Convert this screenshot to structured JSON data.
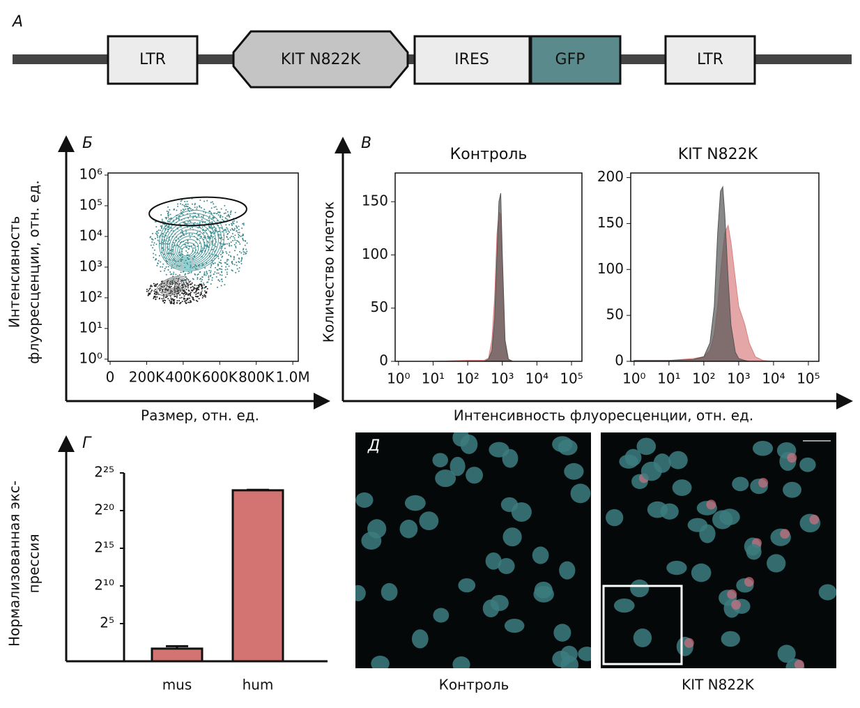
{
  "panel_labels": [
    "А",
    "Б",
    "В",
    "Г",
    "Д"
  ],
  "construct": {
    "elements": [
      "LTR",
      "KIT N822K",
      "IRES",
      "GFP",
      "LTR"
    ]
  },
  "histogram_axes": {
    "x_label": "Интенсивность флуоресценции, отн. ед.",
    "y_label": "Количество клеток"
  },
  "images": {
    "captions": [
      "Контроль",
      "KIT N822K"
    ]
  },
  "chart_data": [
    {
      "type": "contour",
      "x_label": "Размер, отн. ед.",
      "y_label": [
        "Интенсивность",
        "флуоресценции, отн. ед."
      ],
      "xlim": [
        -11500,
        1030000
      ],
      "ylim": [
        0.85,
        1170000
      ],
      "log_y": true,
      "xticks": [
        0,
        {
          "value": 200000,
          "label": "200K"
        },
        {
          "value": 400000,
          "label": "400K"
        },
        {
          "value": 600000,
          "label": "600K"
        },
        {
          "value": 800000,
          "label": "800K"
        },
        {
          "value": 1000000,
          "label": "1.0M"
        }
      ],
      "yticks": [
        {
          "value": 1,
          "label": "10⁰"
        },
        {
          "value": 10,
          "label": "10¹"
        },
        {
          "value": 100,
          "label": "10²"
        },
        {
          "value": 1000,
          "label": "10³"
        },
        {
          "value": 10000,
          "label": "10⁴"
        },
        {
          "value": 100000,
          "label": "10⁵"
        },
        {
          "value": 1000000,
          "label": "10⁶"
        }
      ]
    },
    {
      "type": "area",
      "title": "Контроль",
      "log_x": true,
      "xlim": [
        0.8,
        200000
      ],
      "ylim": [
        0,
        177
      ],
      "yticks": [
        0,
        50,
        100,
        150
      ],
      "xticks": [
        {
          "value": 1,
          "label": "10⁰"
        },
        {
          "value": 10,
          "label": "10¹"
        },
        {
          "value": 100,
          "label": "10²"
        },
        {
          "value": 1000,
          "label": "10³"
        },
        {
          "value": 10000,
          "label": "10⁴"
        },
        {
          "value": 100000,
          "label": "10⁵"
        }
      ],
      "x": [
        1,
        10,
        100,
        300,
        400,
        500,
        600,
        700,
        800,
        900,
        1000,
        1200,
        1500,
        2000,
        10000,
        100000
      ],
      "series": [
        {
          "color": "#d98080",
          "values": [
            0,
            0,
            1,
            1,
            3,
            20,
            60,
            120,
            140,
            138,
            90,
            15,
            2,
            0,
            0,
            0
          ]
        },
        {
          "color": "#555555",
          "values": [
            0,
            0,
            0,
            0,
            2,
            10,
            40,
            100,
            150,
            158,
            100,
            20,
            2,
            0,
            0,
            0
          ]
        }
      ]
    },
    {
      "type": "area",
      "title": "KIT N822K",
      "log_x": true,
      "xlim": [
        0.8,
        200000
      ],
      "ylim": [
        0,
        205
      ],
      "yticks": [
        0,
        50,
        100,
        150,
        200
      ],
      "xticks": [
        {
          "value": 1,
          "label": "10⁰"
        },
        {
          "value": 10,
          "label": "10¹"
        },
        {
          "value": 100,
          "label": "10²"
        },
        {
          "value": 1000,
          "label": "10³"
        },
        {
          "value": 10000,
          "label": "10⁴"
        },
        {
          "value": 100000,
          "label": "10⁵"
        }
      ],
      "x": [
        1,
        10,
        50,
        100,
        150,
        200,
        250,
        300,
        350,
        400,
        500,
        600,
        800,
        1000,
        1500,
        2000,
        3000,
        5000,
        10000,
        100000
      ],
      "series": [
        {
          "color": "#d98080",
          "values": [
            1,
            1,
            3,
            5,
            12,
            30,
            60,
            95,
            120,
            140,
            148,
            130,
            90,
            60,
            40,
            20,
            5,
            1,
            0,
            0
          ]
        },
        {
          "color": "#555555",
          "values": [
            1,
            1,
            2,
            5,
            20,
            60,
            140,
            185,
            190,
            160,
            90,
            40,
            10,
            3,
            1,
            0,
            0,
            0,
            0,
            0
          ]
        }
      ]
    },
    {
      "type": "bar",
      "y_label": [
        "Нормализованная экс-",
        "прессия"
      ],
      "log_base": 2,
      "ylim": [
        1,
        33554432
      ],
      "yticks": [
        {
          "value": 32,
          "label": "2⁵"
        },
        {
          "value": 1024,
          "label": "2¹⁰"
        },
        {
          "value": 32768,
          "label": "2¹⁵"
        },
        {
          "value": 1048576,
          "label": "2²⁰"
        },
        {
          "value": 33554432,
          "label": "2²⁵"
        }
      ],
      "categories": [
        "mus",
        "hum"
      ],
      "values": [
        3.2,
        6800000
      ],
      "errors": [
        0.8,
        300000
      ],
      "color": "#d47472"
    }
  ]
}
